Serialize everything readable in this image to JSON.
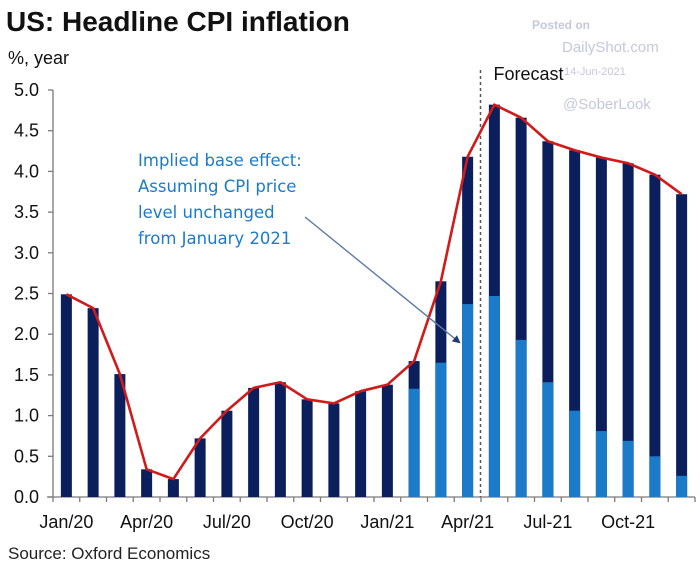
{
  "chart_data": {
    "type": "bar",
    "title": "US: Headline CPI inflation",
    "ylabel": "%, year",
    "xlabel": "",
    "source": "Source: Oxford Economics",
    "ylim": [
      0,
      5.0
    ],
    "yticks": [
      0.0,
      0.5,
      1.0,
      1.5,
      2.0,
      2.5,
      3.0,
      3.5,
      4.0,
      4.5,
      5.0
    ],
    "ytick_labels": [
      "0.0",
      "0.5",
      "1.0",
      "1.5",
      "2.0",
      "2.5",
      "3.0",
      "3.5",
      "4.0",
      "4.5",
      "5.0"
    ],
    "grid": false,
    "categories": [
      "Jan/20",
      "Feb/20",
      "Mar/20",
      "Apr/20",
      "May/20",
      "Jun/20",
      "Jul/20",
      "Aug/20",
      "Sep/20",
      "Oct/20",
      "Nov/20",
      "Dec/20",
      "Jan/21",
      "Feb/21",
      "Mar/21",
      "Apr/21",
      "May-21",
      "Jun-21",
      "Jul-21",
      "Aug-21",
      "Sep-21",
      "Oct-21",
      "Nov-21",
      "Dec-21"
    ],
    "xtick_labels": [
      {
        "label": "Jan/20",
        "index": 0
      },
      {
        "label": "Apr/20",
        "index": 3
      },
      {
        "label": "Jul/20",
        "index": 6
      },
      {
        "label": "Oct/20",
        "index": 9
      },
      {
        "label": "Jan/21",
        "index": 12
      },
      {
        "label": "Apr/21",
        "index": 15
      },
      {
        "label": "Jul-21",
        "index": 18
      },
      {
        "label": "Oct-21",
        "index": 21
      }
    ],
    "series": [
      {
        "name": "Headline CPI inflation (total)",
        "kind": "bar",
        "color": "#0a1f5c",
        "values": [
          2.49,
          2.32,
          1.51,
          0.34,
          0.22,
          0.72,
          1.06,
          1.34,
          1.41,
          1.2,
          1.15,
          1.3,
          1.38,
          1.67,
          2.65,
          4.18,
          4.82,
          4.66,
          4.37,
          4.26,
          4.17,
          4.1,
          3.96,
          3.72
        ]
      },
      {
        "name": "Implied base effect",
        "kind": "bar-overlay",
        "color": "#1b7bc8",
        "values": [
          null,
          null,
          null,
          null,
          null,
          null,
          null,
          null,
          null,
          null,
          null,
          null,
          null,
          1.33,
          1.65,
          2.37,
          2.47,
          1.93,
          1.41,
          1.06,
          0.81,
          0.69,
          0.5,
          0.26
        ]
      },
      {
        "name": "Headline CPI inflation (line)",
        "kind": "line",
        "color": "#d11a1a",
        "values": [
          2.49,
          2.32,
          1.51,
          0.34,
          0.22,
          0.72,
          1.06,
          1.34,
          1.41,
          1.2,
          1.15,
          1.3,
          1.38,
          1.67,
          2.65,
          4.18,
          4.82,
          4.66,
          4.37,
          4.26,
          4.17,
          4.1,
          3.96,
          3.72
        ]
      }
    ],
    "forecast": {
      "label": "Forecast",
      "start_after_index": 15
    },
    "annotation": {
      "lines": [
        "Implied base effect:",
        "Assuming CPI price",
        "level unchanged",
        "from January 2021"
      ],
      "arrow_to_index": 15,
      "arrow_to_value": 1.9
    }
  },
  "watermark": {
    "posted_on": "Posted on",
    "site": "DailyShot.com",
    "date": "14-Jun-2021",
    "handle": "@SoberLook"
  },
  "colors": {
    "bar_dark": "#0a1f5c",
    "bar_light": "#1b7bc8",
    "line": "#d11a1a",
    "axis": "#7a7a7a",
    "arrow": "#5d7aa6"
  }
}
